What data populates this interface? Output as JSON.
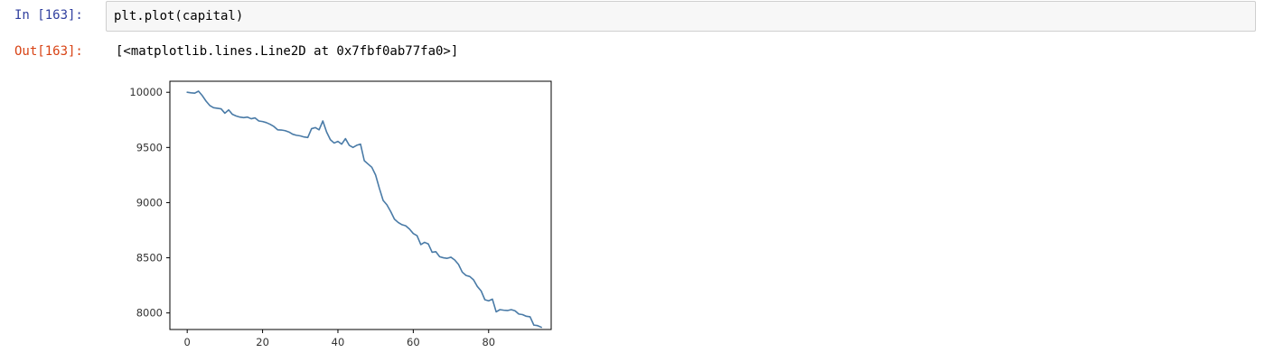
{
  "input_cell": {
    "prompt": "In [163]:",
    "code": "plt.plot(capital)"
  },
  "output_cell": {
    "prompt": "Out[163]:",
    "text": "[<matplotlib.lines.Line2D at 0x7fbf0ab77fa0>]"
  },
  "chart_data": {
    "type": "line",
    "title": "",
    "xlabel": "",
    "ylabel": "",
    "xlim": [
      -4.6,
      96.6
    ],
    "ylim": [
      7850,
      10100
    ],
    "xticks": [
      0,
      20,
      40,
      60,
      80
    ],
    "yticks": [
      8000,
      8500,
      9000,
      9500,
      10000
    ],
    "grid": false,
    "line_color": "#4a7ba7",
    "series": [
      {
        "values": [
          10000,
          9995,
          9992,
          10010,
          9970,
          9920,
          9880,
          9860,
          9855,
          9850,
          9810,
          9840,
          9800,
          9785,
          9775,
          9770,
          9775,
          9760,
          9768,
          9740,
          9735,
          9725,
          9710,
          9690,
          9660,
          9658,
          9652,
          9640,
          9620,
          9610,
          9605,
          9595,
          9590,
          9670,
          9680,
          9660,
          9740,
          9640,
          9570,
          9540,
          9555,
          9530,
          9580,
          9520,
          9500,
          9520,
          9530,
          9380,
          9350,
          9320,
          9250,
          9130,
          9020,
          8980,
          8920,
          8850,
          8820,
          8800,
          8790,
          8760,
          8720,
          8700,
          8620,
          8640,
          8625,
          8550,
          8555,
          8510,
          8500,
          8495,
          8505,
          8480,
          8440,
          8370,
          8340,
          8330,
          8300,
          8240,
          8200,
          8120,
          8110,
          8125,
          8010,
          8030,
          8025,
          8022,
          8030,
          8020,
          7990,
          7985,
          7970,
          7965,
          7890,
          7885,
          7870
        ]
      }
    ]
  }
}
